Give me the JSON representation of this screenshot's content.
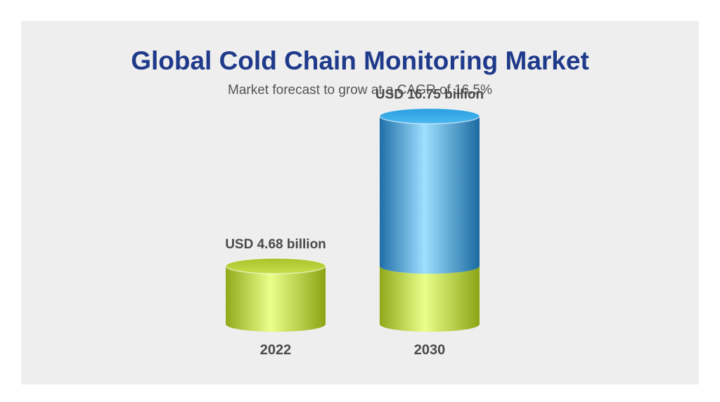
{
  "header": {
    "title": "Global Cold Chain Monitoring Market",
    "subtitle": "Market forecast to grow at a CAGR of 16.5%"
  },
  "colors": {
    "title": "#1f3a8a",
    "base_segment": "#b5d334",
    "growth_segment": "#3aa0e0",
    "panel": "#eeeeee"
  },
  "chart_data": {
    "type": "bar",
    "style": "3d-cylinder",
    "categories": [
      "2022",
      "2030"
    ],
    "values": [
      4.68,
      16.75
    ],
    "value_labels": [
      "USD 4.68 billion",
      "USD 16.75 billion"
    ],
    "unit": "USD billion",
    "stacked_segments": {
      "base": [
        4.68,
        4.68
      ],
      "growth": [
        0,
        12.07
      ]
    },
    "grid": false,
    "legend": "none"
  }
}
